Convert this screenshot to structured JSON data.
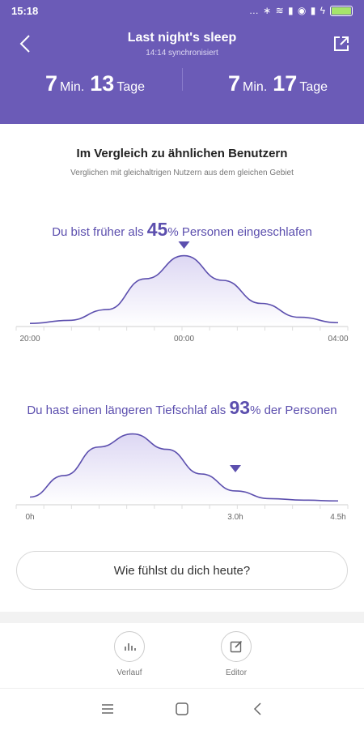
{
  "status": {
    "time": "15:18",
    "icons": "… ∗ ≋ ▮ ◉ ▮ ϟ"
  },
  "header": {
    "title": "Last night's sleep",
    "sync": "14:14 synchronisiert",
    "left": {
      "min": "7",
      "min_unit": "Min.",
      "days": "13",
      "days_unit": "Tage"
    },
    "right": {
      "min": "7",
      "min_unit": "Min.",
      "days": "17",
      "days_unit": "Tage"
    }
  },
  "compare": {
    "title": "Im Vergleich zu ähnlichen Benutzern",
    "subtitle": "Verglichen mit gleichaltrigen Nutzern aus dem gleichen Gebiet"
  },
  "stat1": {
    "prefix": "Du bist früher als",
    "value": "45",
    "suffix": "% Personen eingeschlafen"
  },
  "stat2": {
    "prefix": "Du hast einen längeren Tiefschlaf als",
    "value": "93",
    "suffix": "% der Personen"
  },
  "chart_data": [
    {
      "type": "area",
      "x": [
        "20:00",
        "21:00",
        "22:00",
        "23:00",
        "00:00",
        "01:00",
        "02:00",
        "03:00",
        "04:00"
      ],
      "y": [
        0.04,
        0.08,
        0.22,
        0.62,
        0.92,
        0.6,
        0.3,
        0.12,
        0.05
      ],
      "marker": "00:00",
      "tick_labels": [
        "20:00",
        "00:00",
        "04:00"
      ]
    },
    {
      "type": "area",
      "x": [
        0,
        0.5,
        1.0,
        1.5,
        2.0,
        2.5,
        3.0,
        3.5,
        4.0,
        4.5
      ],
      "y": [
        0.1,
        0.38,
        0.75,
        0.92,
        0.72,
        0.4,
        0.18,
        0.08,
        0.06,
        0.05
      ],
      "marker": 3.0,
      "tick_labels": [
        "0h",
        "3.0h",
        "4.5h"
      ]
    }
  ],
  "feel_button": "Wie fühlst du dich heute?",
  "nav": {
    "history": "Verlauf",
    "editor": "Editor"
  },
  "colors": {
    "accent": "#6b5bb7",
    "curve": "#5c4fae"
  }
}
